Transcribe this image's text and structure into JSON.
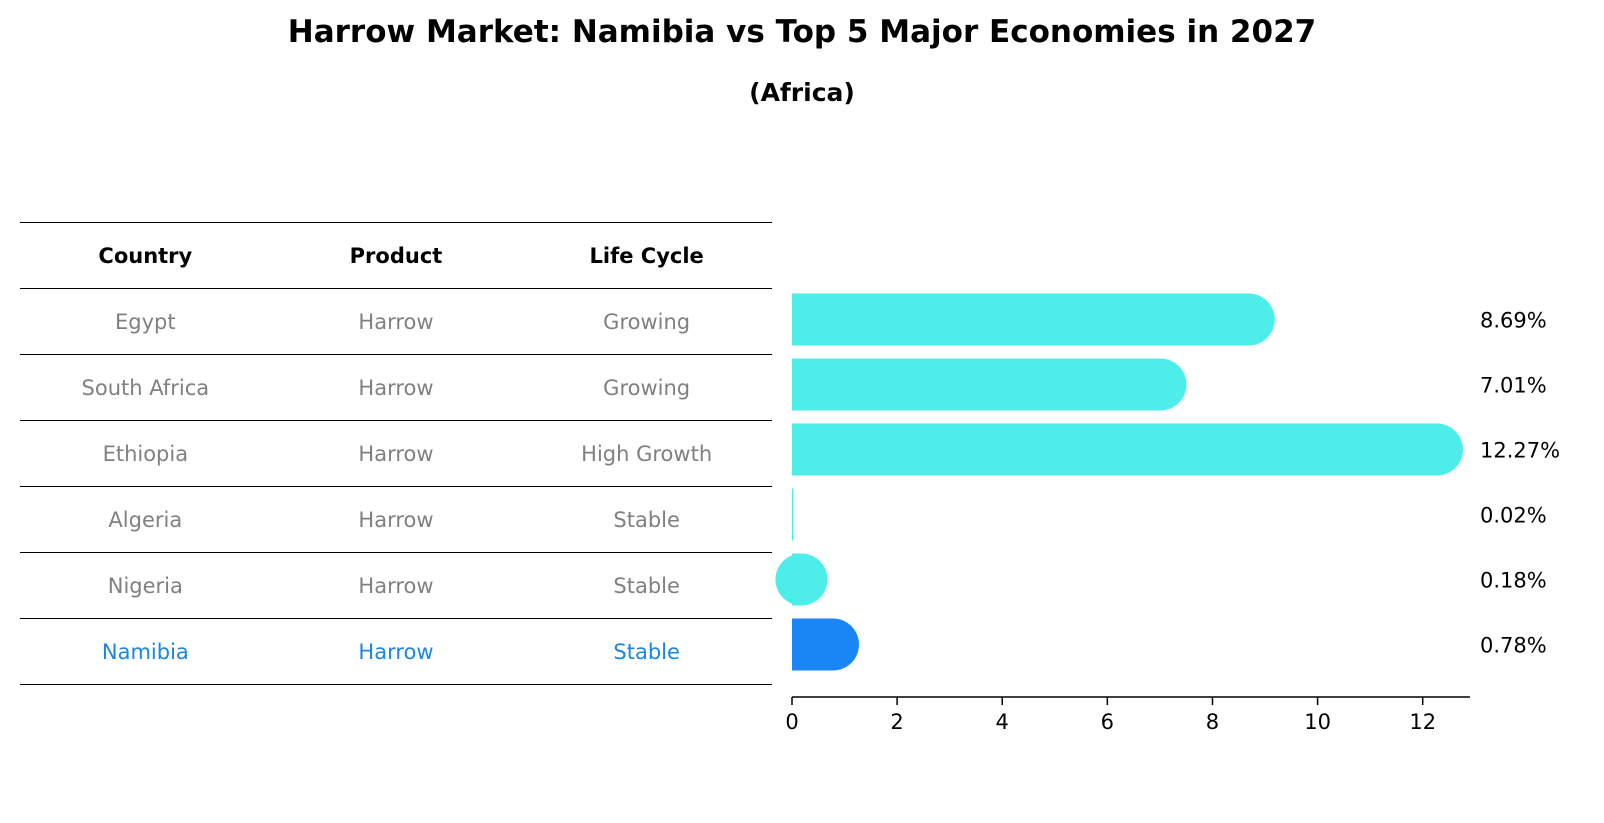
{
  "title": "Harrow Market: Namibia vs Top 5 Major Economies in 2027",
  "subtitle": "(Africa)",
  "table": {
    "headers": [
      "Country",
      "Product",
      "Life Cycle"
    ],
    "rows": [
      {
        "country": "Egypt",
        "product": "Harrow",
        "life_cycle": "Growing"
      },
      {
        "country": "South Africa",
        "product": "Harrow",
        "life_cycle": "Growing"
      },
      {
        "country": "Ethiopia",
        "product": "Harrow",
        "life_cycle": "High Growth"
      },
      {
        "country": "Algeria",
        "product": "Harrow",
        "life_cycle": "Stable"
      },
      {
        "country": "Nigeria",
        "product": "Harrow",
        "life_cycle": "Stable"
      },
      {
        "country": "Namibia",
        "product": "Harrow",
        "life_cycle": "Stable"
      }
    ]
  },
  "chart_data": {
    "type": "bar",
    "orientation": "horizontal",
    "categories": [
      "Egypt",
      "South Africa",
      "Ethiopia",
      "Algeria",
      "Nigeria",
      "Namibia"
    ],
    "values": [
      8.69,
      7.01,
      12.27,
      0.02,
      0.18,
      0.78
    ],
    "value_labels": [
      "8.69%",
      "7.01%",
      "12.27%",
      "0.02%",
      "0.18%",
      "0.78%"
    ],
    "highlight": "Namibia",
    "xlim": [
      0,
      12.9
    ],
    "xticks": [
      0,
      2,
      4,
      6,
      8,
      10,
      12
    ],
    "grid": false,
    "colors": {
      "default": "#4deeea",
      "highlight": "#1a86f5"
    }
  }
}
